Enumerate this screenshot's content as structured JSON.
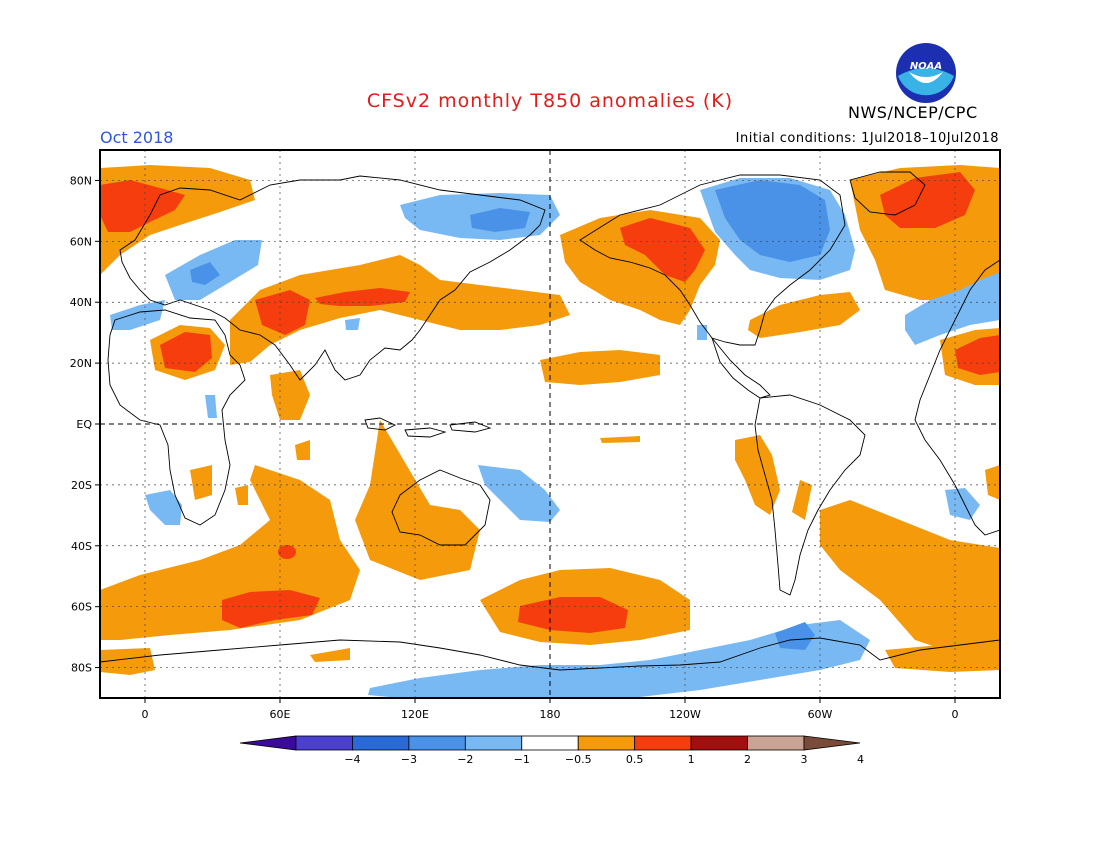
{
  "header": {
    "title": "CFSv2 monthly T850 anomalies (K)",
    "period": "Oct 2018",
    "initial_conditions": "Initial conditions: 1Jul2018–10Jul2018",
    "agency": "NWS/NCEP/CPC",
    "logo_text": "NOAA"
  },
  "map": {
    "lat_labels": [
      "80N",
      "60N",
      "40N",
      "20N",
      "EQ",
      "20S",
      "40S",
      "60S",
      "80S"
    ],
    "lat_values": [
      80,
      60,
      40,
      20,
      0,
      -20,
      -40,
      -60,
      -80
    ],
    "lon_labels": [
      "0",
      "60E",
      "120E",
      "180",
      "120W",
      "60W",
      "0"
    ],
    "lon_values": [
      0,
      60,
      120,
      180,
      240,
      300,
      360
    ],
    "lon_range": [
      -20,
      380
    ],
    "lat_range": [
      -90,
      90
    ]
  },
  "legend": {
    "tick_labels": [
      "−4",
      "−3",
      "−2",
      "−1",
      "−0.5",
      "0.5",
      "1",
      "2",
      "3",
      "4"
    ],
    "colors": [
      "#3a0a9a",
      "#4b3fcf",
      "#2a6ad7",
      "#4a92e8",
      "#79b9f3",
      "#ffffff",
      "#f59a0a",
      "#f53d0e",
      "#a20f0f",
      "#c9a494",
      "#7a4a3a"
    ]
  }
}
